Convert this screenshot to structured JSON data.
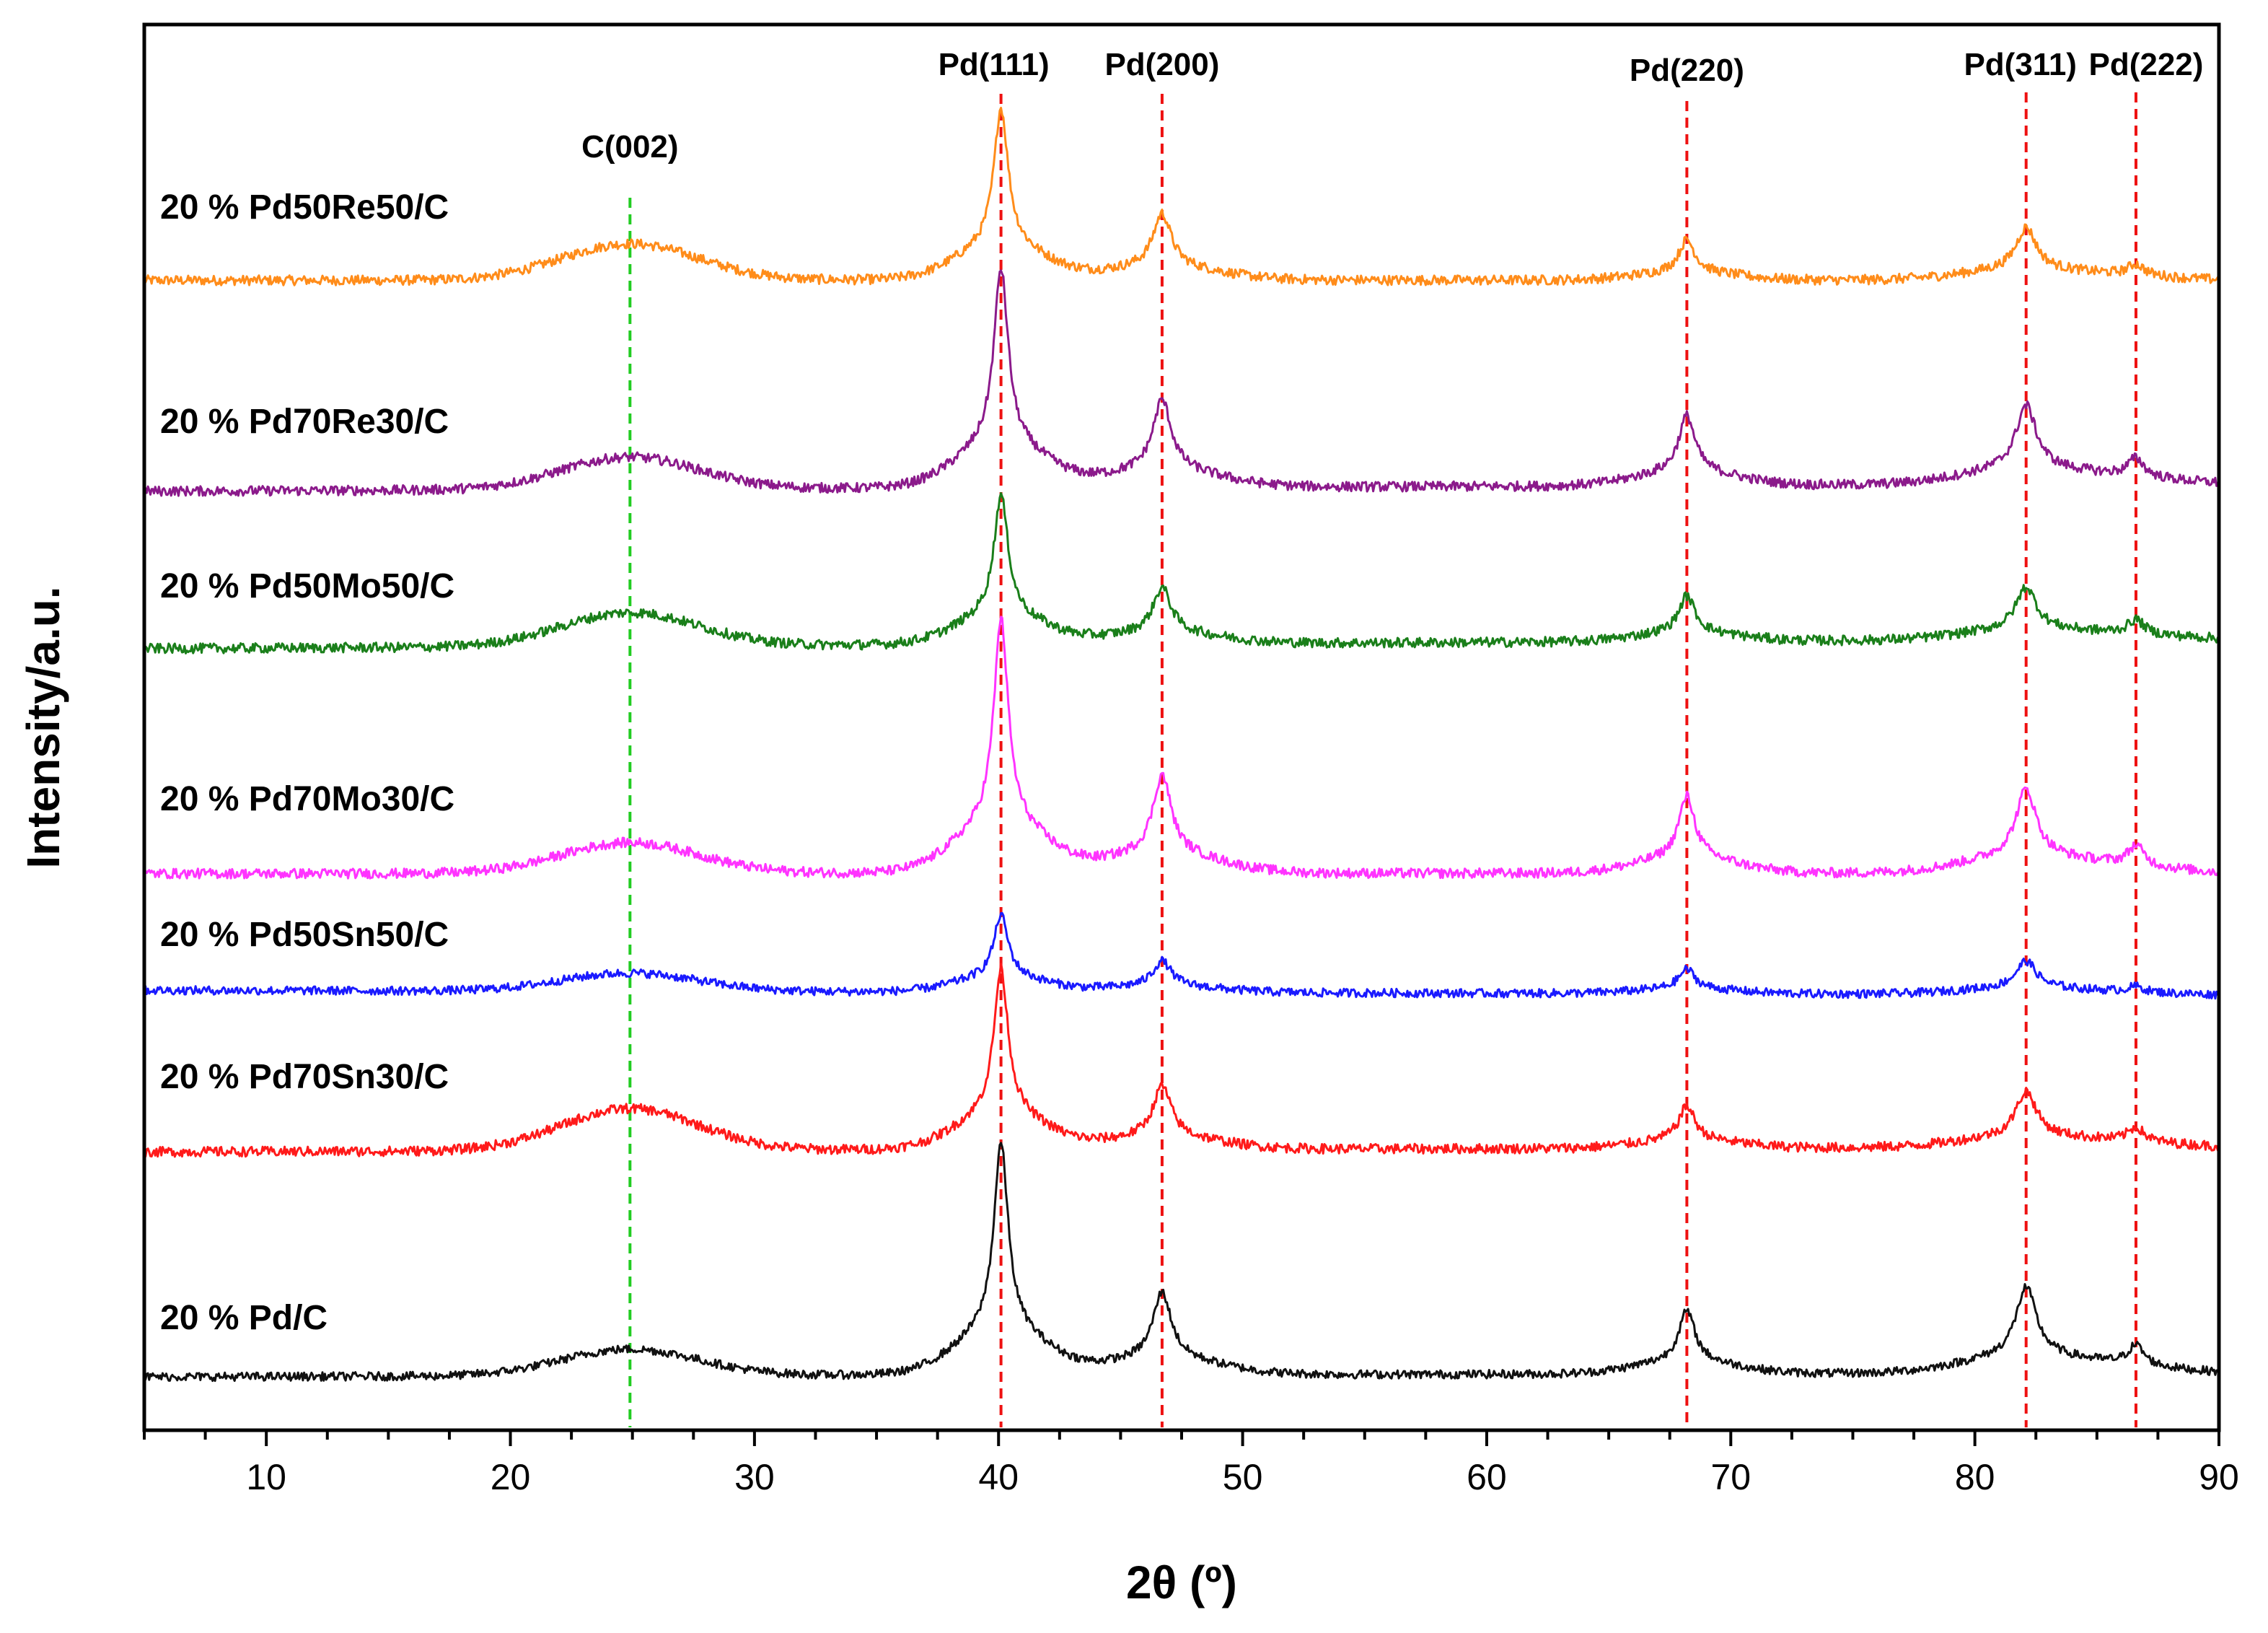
{
  "chart_data": {
    "type": "line",
    "title": "",
    "xlabel": "2θ (º)",
    "ylabel": "Intensity/a.u.",
    "xlim": [
      5,
      90
    ],
    "ylim": [
      0,
      100
    ],
    "x_ticks": [
      10,
      20,
      30,
      40,
      50,
      60,
      70,
      80,
      90
    ],
    "minor_tick_step": 2.5,
    "grid": false,
    "legend": "none",
    "peak_positions": [
      24.9,
      40.1,
      46.7,
      68.2,
      82.1,
      86.6
    ],
    "peak_widths": [
      2.8,
      0.35,
      0.45,
      0.4,
      0.5,
      0.4
    ],
    "reference_lines": [
      {
        "label": "C(002)",
        "x": 24.9,
        "color": "#22cc22"
      },
      {
        "label": "Pd(111)",
        "x": 40.1,
        "color": "#ee1111"
      },
      {
        "label": "Pd(200)",
        "x": 46.7,
        "color": "#ee1111"
      },
      {
        "label": "Pd(220)",
        "x": 68.2,
        "color": "#ee1111"
      },
      {
        "label": "Pd(311)",
        "x": 82.1,
        "color": "#ee1111"
      },
      {
        "label": "Pd(222)",
        "x": 86.6,
        "color": "#ee1111"
      }
    ],
    "series": [
      {
        "name": "20 % Pd50Re50/C",
        "color": "#ff8c1a",
        "baseline": 81.8,
        "slope": 0.0,
        "amplitudes": [
          2.6,
          9.8,
          3.8,
          2.3,
          3.0,
          0.8
        ],
        "noise": 0.35
      },
      {
        "name": "20 % Pd70Re30/C",
        "color": "#8b1a8b",
        "baseline": 66.8,
        "slope": 0.006,
        "amplitudes": [
          2.3,
          12.5,
          5.0,
          4.0,
          4.5,
          1.3
        ],
        "noise": 0.35
      },
      {
        "name": "20 % Pd50Mo50/C",
        "color": "#1a7f1a",
        "baseline": 55.6,
        "slope": 0.008,
        "amplitudes": [
          2.4,
          8.5,
          3.2,
          2.6,
          3.0,
          1.0
        ],
        "noise": 0.35
      },
      {
        "name": "20 % Pd70Mo30/C",
        "color": "#ff33ff",
        "baseline": 39.6,
        "slope": 0.0,
        "amplitudes": [
          2.2,
          14.5,
          5.6,
          4.4,
          4.8,
          1.4
        ],
        "noise": 0.35
      },
      {
        "name": "20 % Pd50Sn50/C",
        "color": "#1a1aff",
        "baseline": 31.3,
        "slope": -0.004,
        "amplitudes": [
          1.3,
          4.4,
          1.8,
          1.4,
          1.9,
          0.4
        ],
        "noise": 0.3
      },
      {
        "name": "20 % Pd70Sn30/C",
        "color": "#ff1a1a",
        "baseline": 19.8,
        "slope": 0.004,
        "amplitudes": [
          3.0,
          10.3,
          3.6,
          2.4,
          3.2,
          1.0
        ],
        "noise": 0.35
      },
      {
        "name": "20 % Pd/C",
        "color": "#111111",
        "baseline": 3.8,
        "slope": 0.003,
        "amplitudes": [
          1.9,
          13.2,
          4.7,
          3.6,
          4.9,
          1.4
        ],
        "noise": 0.3
      }
    ]
  }
}
